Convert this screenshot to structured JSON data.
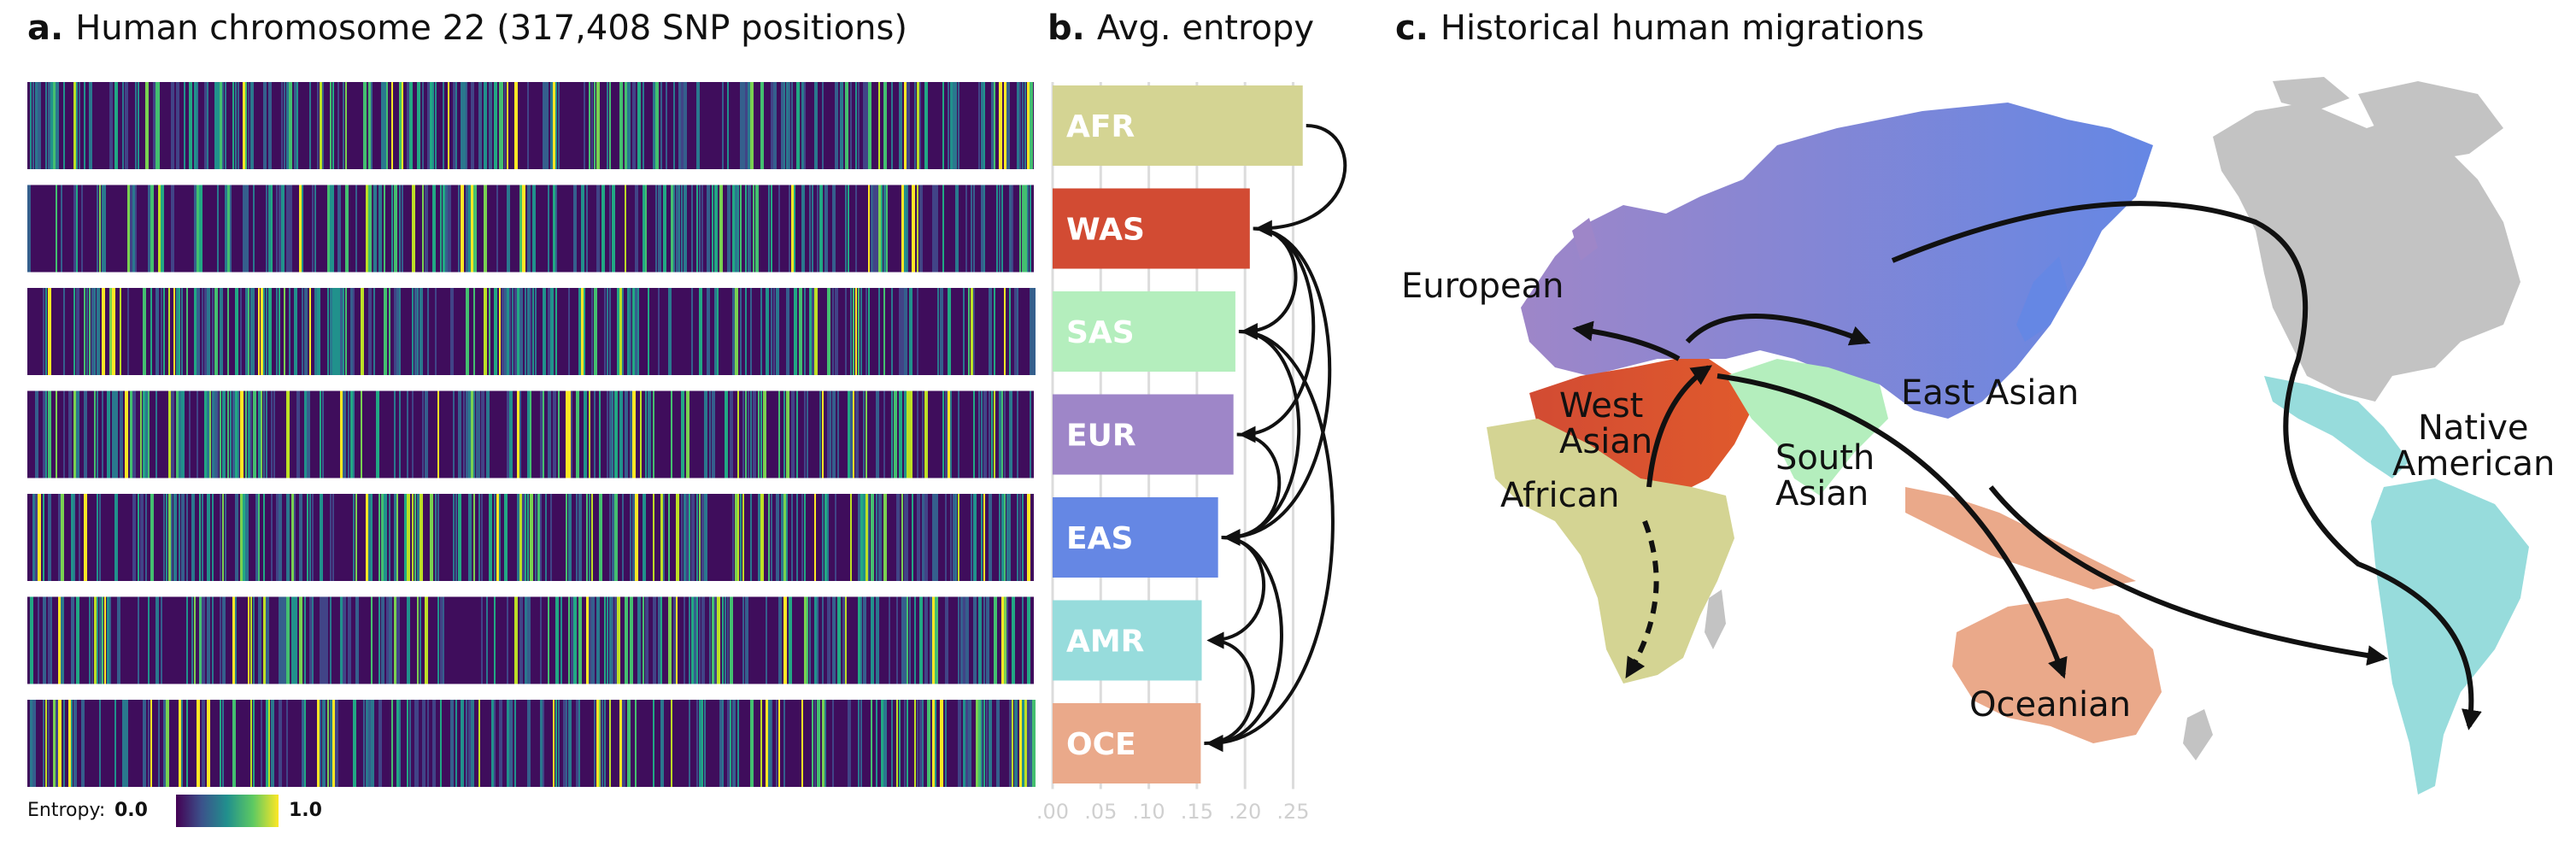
{
  "panel_a": {
    "letter": "a.",
    "title": "Human chromosome 22 (317,408 SNP positions)",
    "tracks": [
      "AFR",
      "WAS",
      "SAS",
      "EUR",
      "EAS",
      "AMR",
      "OCE"
    ]
  },
  "panel_b": {
    "letter": "b.",
    "title": "Avg. entropy"
  },
  "panel_c": {
    "letter": "c.",
    "title": "Historical human migrations",
    "labels": {
      "european": "European",
      "west_asian": "West Asian",
      "african": "African",
      "east_asian": "East Asian",
      "south_asian": "South Asian",
      "native_american": "Native American",
      "oceanian": "Oceanian"
    }
  },
  "legend": {
    "label": "Entropy:",
    "min": "0.0",
    "max": "1.0"
  },
  "colors": {
    "AFR": "#d4d493",
    "WAS": "#d24b33",
    "SAS": "#b4eebd",
    "EUR": "#9e86c8",
    "EAS": "#6587e4",
    "AMR": "#97dcdc",
    "OCE": "#eaa98a",
    "grey": "#c3c3c3"
  },
  "chart_data": {
    "type": "bar",
    "orientation": "horizontal",
    "title": "Avg. entropy",
    "categories": [
      "AFR",
      "WAS",
      "SAS",
      "EUR",
      "EAS",
      "AMR",
      "OCE"
    ],
    "values": [
      0.26,
      0.205,
      0.19,
      0.188,
      0.172,
      0.155,
      0.154
    ],
    "xlim": [
      0,
      0.27
    ],
    "xticks": [
      ".00",
      ".05",
      ".10",
      ".15",
      ".20",
      ".25"
    ],
    "xtick_values": [
      0,
      0.05,
      0.1,
      0.15,
      0.2,
      0.25
    ],
    "arrows": [
      [
        "AFR",
        "WAS"
      ],
      [
        "WAS",
        "SAS"
      ],
      [
        "WAS",
        "EUR"
      ],
      [
        "WAS",
        "EAS"
      ],
      [
        "SAS",
        "EAS"
      ],
      [
        "SAS",
        "OCE"
      ],
      [
        "EUR",
        "EAS"
      ],
      [
        "EAS",
        "AMR"
      ],
      [
        "EAS",
        "OCE"
      ],
      [
        "OCE",
        "AMR"
      ]
    ]
  }
}
